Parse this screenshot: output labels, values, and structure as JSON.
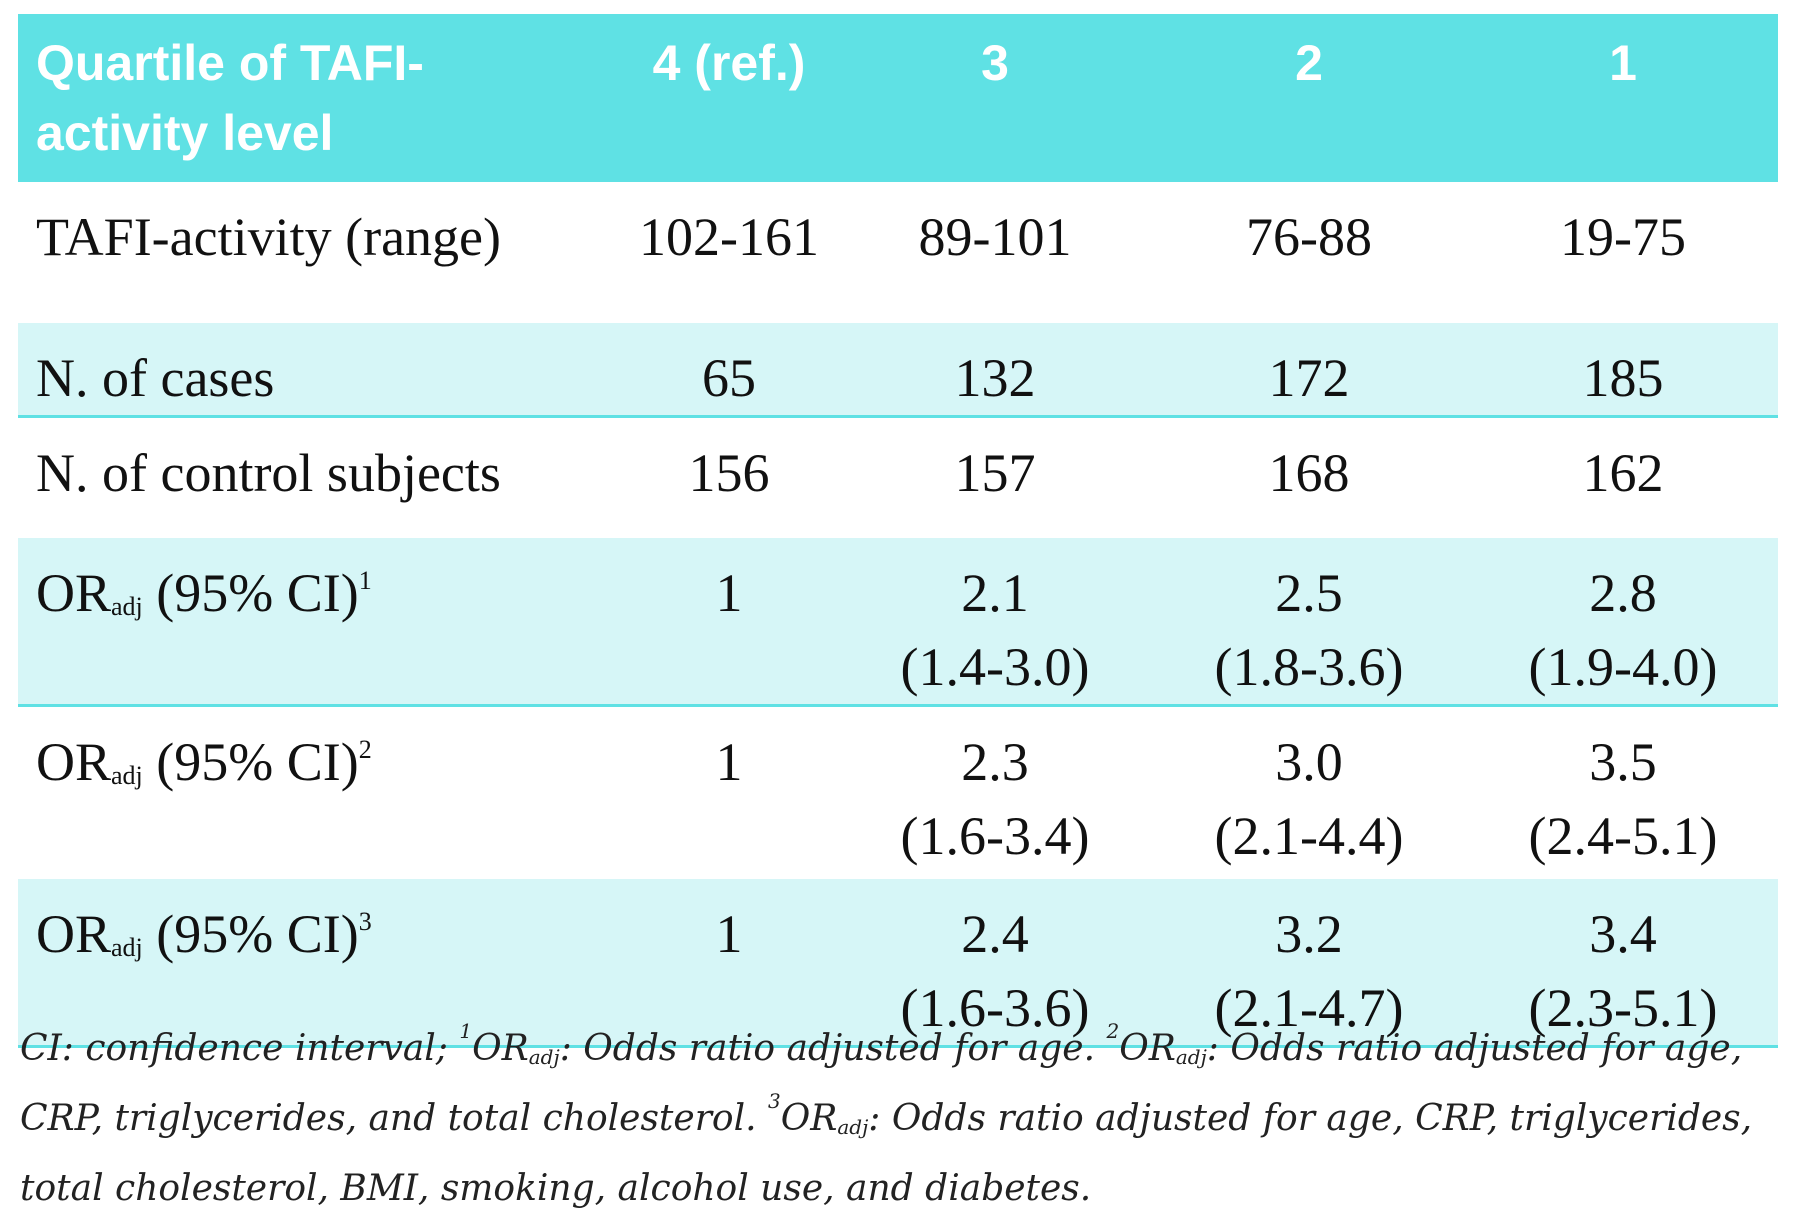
{
  "table": {
    "header": [
      [
        "Quartile of TAFI-",
        "activity level"
      ],
      [
        "4 (ref.)"
      ],
      [
        "3"
      ],
      [
        "2"
      ],
      [
        "1"
      ]
    ],
    "rows": [
      [
        {
          "text": "TAFI-activity (range)"
        },
        [
          "102-161"
        ],
        [
          "89-101"
        ],
        [
          "76-88"
        ],
        [
          "19-75"
        ]
      ],
      [
        {
          "text": "N. of cases"
        },
        [
          "65"
        ],
        [
          "132"
        ],
        [
          "172"
        ],
        [
          "185"
        ]
      ],
      [
        {
          "text": "N. of control subjects"
        },
        [
          "156"
        ],
        [
          "157"
        ],
        [
          "168"
        ],
        [
          "162"
        ]
      ],
      [
        {
          "text": "OR",
          "sub": "adj",
          "rest": " (95% CI)",
          "sup": "1"
        },
        [
          "1"
        ],
        [
          "2.1",
          "(1.4-3.0)"
        ],
        [
          "2.5",
          "(1.8-3.6)"
        ],
        [
          "2.8",
          "(1.9-4.0)"
        ]
      ],
      [
        {
          "text": "OR",
          "sub": "adj",
          "rest": " (95% CI)",
          "sup": "2"
        },
        [
          "1"
        ],
        [
          "2.3",
          "(1.6-3.4)"
        ],
        [
          "3.0",
          "(2.1-4.4)"
        ],
        [
          "3.5",
          "(2.4-5.1)"
        ]
      ],
      [
        {
          "text": "OR",
          "sub": "adj",
          "rest": " (95% CI)",
          "sup": "3"
        },
        [
          "1"
        ],
        [
          "2.4",
          "(1.6-3.6)"
        ],
        [
          "3.2",
          "(2.1-4.7)"
        ],
        [
          "3.4",
          "(2.3-5.1)"
        ]
      ]
    ]
  },
  "footnote": [
    {
      "text": "CI: confidence interval; "
    },
    {
      "sup": "1"
    },
    {
      "text": "OR"
    },
    {
      "sub": "adj"
    },
    {
      "text": ": Odds ratio adjusted for age. "
    },
    {
      "sup": "2"
    },
    {
      "text": "OR"
    },
    {
      "sub": "adj"
    },
    {
      "text": ": Odds ratio adjusted for age, CRP, triglycerides, and total cholesterol. "
    },
    {
      "sup": "3"
    },
    {
      "text": "OR"
    },
    {
      "sub": "adj"
    },
    {
      "text": ": Odds ratio adjusted for age, CRP, triglycerides, total cholesterol, BMI, smoking, alcohol use, and diabetes."
    }
  ]
}
